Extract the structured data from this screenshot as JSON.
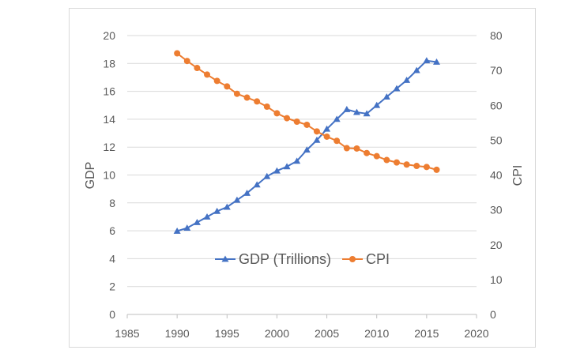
{
  "chart_data": {
    "type": "line",
    "title": "",
    "xlabel": "",
    "ylabel": "GDP",
    "y2label": "CPI",
    "xlim": [
      1985,
      2020
    ],
    "xticks": [
      1985,
      1990,
      1995,
      2000,
      2005,
      2010,
      2015,
      2020
    ],
    "ylim": [
      0,
      20
    ],
    "yticks": [
      0,
      2,
      4,
      6,
      8,
      10,
      12,
      14,
      16,
      18,
      20
    ],
    "y2lim": [
      0,
      80
    ],
    "y2ticks": [
      0,
      10,
      20,
      30,
      40,
      50,
      60,
      70,
      80
    ],
    "grid": "horizontal",
    "legend_position": "center",
    "series": [
      {
        "name": "GDP (Trillions)",
        "axis": "left",
        "color": "#4472c4",
        "marker": "triangle",
        "x": [
          1990,
          1991,
          1992,
          1993,
          1994,
          1995,
          1996,
          1997,
          1998,
          1999,
          2000,
          2001,
          2002,
          2003,
          2004,
          2005,
          2006,
          2007,
          2008,
          2009,
          2010,
          2011,
          2012,
          2013,
          2014,
          2015,
          2016
        ],
        "values": [
          5.98,
          6.2,
          6.6,
          7.0,
          7.4,
          7.7,
          8.2,
          8.7,
          9.3,
          9.9,
          10.3,
          10.6,
          11.0,
          11.8,
          12.5,
          13.3,
          14.0,
          14.7,
          14.5,
          14.4,
          15.0,
          15.6,
          16.2,
          16.8,
          17.5,
          18.2,
          18.1
        ]
      },
      {
        "name": "CPI",
        "axis": "right",
        "color": "#ed7d31",
        "marker": "circle",
        "x": [
          1990,
          1991,
          1992,
          1993,
          1994,
          1995,
          1996,
          1997,
          1998,
          1999,
          2000,
          2001,
          2002,
          2003,
          2004,
          2005,
          2006,
          2007,
          2008,
          2009,
          2010,
          2011,
          2012,
          2013,
          2014,
          2015,
          2016
        ],
        "values": [
          74.9,
          72.7,
          70.7,
          68.8,
          67.0,
          65.4,
          63.3,
          62.2,
          61.1,
          59.6,
          57.7,
          56.3,
          55.3,
          54.4,
          52.5,
          51.0,
          49.8,
          47.7,
          47.6,
          46.3,
          45.4,
          44.3,
          43.6,
          43.0,
          42.6,
          42.3,
          41.5
        ]
      }
    ]
  }
}
